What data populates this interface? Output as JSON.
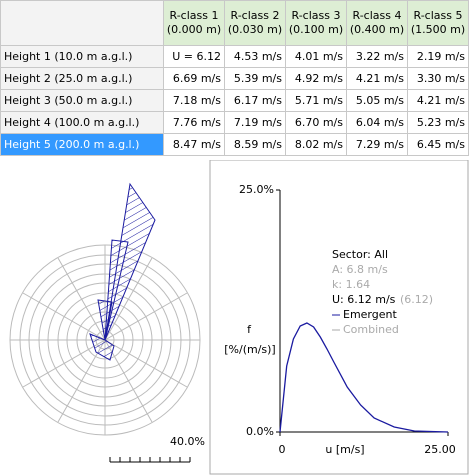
{
  "table": {
    "columns": [
      {
        "name": "R-class 1",
        "height": "(0.000 m)"
      },
      {
        "name": "R-class 2",
        "height": "(0.030 m)"
      },
      {
        "name": "R-class 3",
        "height": "(0.100 m)"
      },
      {
        "name": "R-class 4",
        "height": "(0.400 m)"
      },
      {
        "name": "R-class 5",
        "height": "(1.500 m)"
      }
    ],
    "rows": [
      {
        "label": "Height 1  (10.0 m a.g.l.)",
        "cells": [
          "U = 6.12",
          "4.53 m/s",
          "4.01 m/s",
          "3.22 m/s",
          "2.19 m/s"
        ]
      },
      {
        "label": "Height 2  (25.0 m a.g.l.)",
        "cells": [
          "6.69 m/s",
          "5.39 m/s",
          "4.92 m/s",
          "4.21 m/s",
          "3.30 m/s"
        ]
      },
      {
        "label": "Height 3  (50.0 m a.g.l.)",
        "cells": [
          "7.18 m/s",
          "6.17 m/s",
          "5.71 m/s",
          "5.05 m/s",
          "4.21 m/s"
        ]
      },
      {
        "label": "Height 4  (100.0 m a.g.l.)",
        "cells": [
          "7.76 m/s",
          "7.19 m/s",
          "6.70 m/s",
          "6.04 m/s",
          "5.23 m/s"
        ]
      },
      {
        "label": "Height 5  (200.0 m a.g.l.)",
        "cells": [
          "8.47 m/s",
          "8.59 m/s",
          "8.02 m/s",
          "7.29 m/s",
          "6.45 m/s"
        ]
      }
    ]
  },
  "rose": {
    "scale_label": "40.0%"
  },
  "plot": {
    "y_top": "25.0%",
    "y_bottom": "0.0%",
    "x_left": "0",
    "x_right": "25.00",
    "x_label": "u [m/s]",
    "y_label_1": "f",
    "y_label_2": "[%/(m/s)]",
    "legend": {
      "sector": "Sector: All",
      "A": "A: 6.8 m/s",
      "k": "k: 1.64",
      "U": "U: 6.12 m/s",
      "U_combined": "(6.12)",
      "emergent": "Emergent",
      "combined": "Combined"
    }
  }
}
